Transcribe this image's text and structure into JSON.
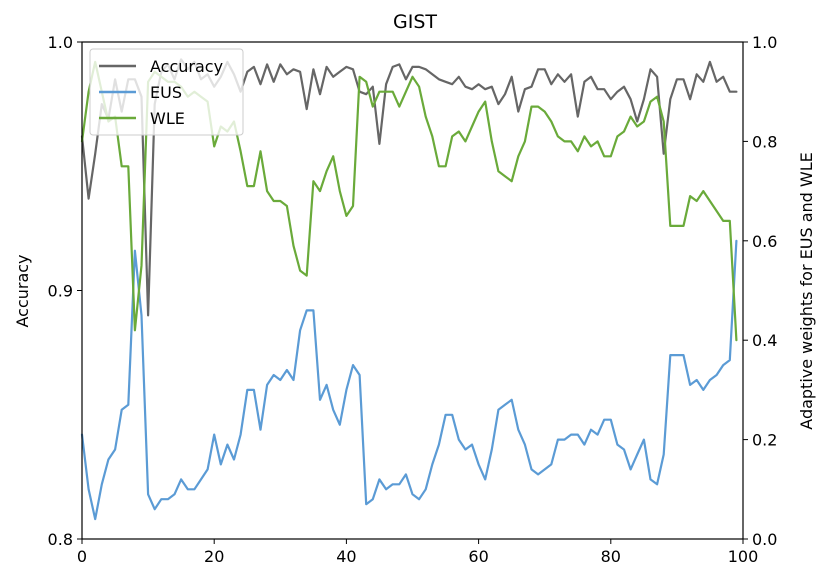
{
  "chart_data": {
    "type": "line",
    "title": "GIST",
    "xlabel": "",
    "ylabel": "Accuracy",
    "ylabel_right": "Adaptive weights for EUS and WLE",
    "xlim": [
      0,
      100
    ],
    "ylim": [
      0.8,
      1.0
    ],
    "ylim_right": [
      0.0,
      1.0
    ],
    "xticks": [
      "0",
      "20",
      "40",
      "60",
      "80",
      "100"
    ],
    "yticks_left": [
      "0.8",
      "0.9",
      "1.0"
    ],
    "yticks_right": [
      "0.0",
      "0.2",
      "0.4",
      "0.6",
      "0.8",
      "1.0"
    ],
    "legend_position": "top-left",
    "grid": false,
    "series": [
      {
        "name": "Accuracy",
        "axis": "left",
        "color": "#666666",
        "x": [
          0,
          1,
          2,
          3,
          4,
          5,
          6,
          7,
          8,
          9,
          10,
          11,
          12,
          13,
          14,
          15,
          16,
          17,
          18,
          19,
          20,
          21,
          22,
          23,
          24,
          25,
          26,
          27,
          28,
          29,
          30,
          31,
          32,
          33,
          34,
          35,
          36,
          37,
          38,
          39,
          40,
          41,
          42,
          43,
          44,
          45,
          46,
          47,
          48,
          49,
          50,
          51,
          52,
          53,
          54,
          55,
          56,
          57,
          58,
          59,
          60,
          61,
          62,
          63,
          64,
          65,
          66,
          67,
          68,
          69,
          70,
          71,
          72,
          73,
          74,
          75,
          76,
          77,
          78,
          79,
          80,
          81,
          82,
          83,
          84,
          85,
          86,
          87,
          88,
          89,
          90,
          91,
          92,
          93,
          94,
          95,
          96,
          97,
          98,
          99
        ],
        "values": [
          0.962,
          0.937,
          0.955,
          0.975,
          0.969,
          0.985,
          0.972,
          0.985,
          0.985,
          0.978,
          0.89,
          0.975,
          0.988,
          0.991,
          0.985,
          0.993,
          0.989,
          0.992,
          0.985,
          0.987,
          0.982,
          0.986,
          0.992,
          0.987,
          0.98,
          0.988,
          0.99,
          0.983,
          0.991,
          0.984,
          0.991,
          0.987,
          0.989,
          0.988,
          0.973,
          0.989,
          0.979,
          0.99,
          0.986,
          0.988,
          0.99,
          0.989,
          0.98,
          0.979,
          0.982,
          0.959,
          0.983,
          0.99,
          0.991,
          0.985,
          0.99,
          0.99,
          0.989,
          0.987,
          0.985,
          0.984,
          0.983,
          0.986,
          0.982,
          0.981,
          0.983,
          0.981,
          0.982,
          0.975,
          0.979,
          0.986,
          0.972,
          0.981,
          0.982,
          0.989,
          0.989,
          0.983,
          0.987,
          0.984,
          0.987,
          0.97,
          0.984,
          0.986,
          0.981,
          0.981,
          0.977,
          0.98,
          0.982,
          0.977,
          0.968,
          0.977,
          0.989,
          0.986,
          0.955,
          0.977,
          0.985,
          0.985,
          0.977,
          0.987,
          0.984,
          0.992,
          0.984,
          0.986,
          0.98,
          0.98
        ]
      },
      {
        "name": "EUS",
        "axis": "right",
        "color": "#5b9bd5",
        "x": [
          0,
          1,
          2,
          3,
          4,
          5,
          6,
          7,
          8,
          9,
          10,
          11,
          12,
          13,
          14,
          15,
          16,
          17,
          18,
          19,
          20,
          21,
          22,
          23,
          24,
          25,
          26,
          27,
          28,
          29,
          30,
          31,
          32,
          33,
          34,
          35,
          36,
          37,
          38,
          39,
          40,
          41,
          42,
          43,
          44,
          45,
          46,
          47,
          48,
          49,
          50,
          51,
          52,
          53,
          54,
          55,
          56,
          57,
          58,
          59,
          60,
          61,
          62,
          63,
          64,
          65,
          66,
          67,
          68,
          69,
          70,
          71,
          72,
          73,
          74,
          75,
          76,
          77,
          78,
          79,
          80,
          81,
          82,
          83,
          84,
          85,
          86,
          87,
          88,
          89,
          90,
          91,
          92,
          93,
          94,
          95,
          96,
          97,
          98,
          99
        ],
        "values": [
          0.21,
          0.1,
          0.04,
          0.11,
          0.16,
          0.18,
          0.26,
          0.27,
          0.58,
          0.45,
          0.09,
          0.06,
          0.08,
          0.08,
          0.09,
          0.12,
          0.1,
          0.1,
          0.12,
          0.14,
          0.21,
          0.15,
          0.19,
          0.16,
          0.21,
          0.3,
          0.3,
          0.22,
          0.31,
          0.33,
          0.32,
          0.34,
          0.32,
          0.42,
          0.46,
          0.46,
          0.28,
          0.31,
          0.26,
          0.23,
          0.3,
          0.35,
          0.33,
          0.07,
          0.08,
          0.12,
          0.1,
          0.11,
          0.11,
          0.13,
          0.09,
          0.08,
          0.1,
          0.15,
          0.19,
          0.25,
          0.25,
          0.2,
          0.18,
          0.19,
          0.15,
          0.12,
          0.18,
          0.26,
          0.27,
          0.28,
          0.22,
          0.19,
          0.14,
          0.13,
          0.14,
          0.15,
          0.2,
          0.2,
          0.21,
          0.21,
          0.19,
          0.22,
          0.21,
          0.24,
          0.24,
          0.19,
          0.18,
          0.14,
          0.17,
          0.2,
          0.12,
          0.11,
          0.17,
          0.37,
          0.37,
          0.37,
          0.31,
          0.32,
          0.3,
          0.32,
          0.33,
          0.35,
          0.36,
          0.6
        ]
      },
      {
        "name": "WLE",
        "axis": "right",
        "color": "#6aaa3a",
        "x": [
          0,
          1,
          2,
          3,
          4,
          5,
          6,
          7,
          8,
          9,
          10,
          11,
          12,
          13,
          14,
          15,
          16,
          17,
          18,
          19,
          20,
          21,
          22,
          23,
          24,
          25,
          26,
          27,
          28,
          29,
          30,
          31,
          32,
          33,
          34,
          35,
          36,
          37,
          38,
          39,
          40,
          41,
          42,
          43,
          44,
          45,
          46,
          47,
          48,
          49,
          50,
          51,
          52,
          53,
          54,
          55,
          56,
          57,
          58,
          59,
          60,
          61,
          62,
          63,
          64,
          65,
          66,
          67,
          68,
          69,
          70,
          71,
          72,
          73,
          74,
          75,
          76,
          77,
          78,
          79,
          80,
          81,
          82,
          83,
          84,
          85,
          86,
          87,
          88,
          89,
          90,
          91,
          92,
          93,
          94,
          95,
          96,
          97,
          98,
          99
        ],
        "values": [
          0.8,
          0.9,
          0.96,
          0.9,
          0.84,
          0.85,
          0.75,
          0.75,
          0.42,
          0.55,
          0.92,
          0.94,
          0.93,
          0.92,
          0.92,
          0.91,
          0.89,
          0.9,
          0.89,
          0.88,
          0.79,
          0.83,
          0.82,
          0.84,
          0.78,
          0.71,
          0.71,
          0.78,
          0.7,
          0.68,
          0.68,
          0.67,
          0.59,
          0.54,
          0.53,
          0.72,
          0.7,
          0.74,
          0.77,
          0.7,
          0.65,
          0.67,
          0.93,
          0.92,
          0.87,
          0.9,
          0.9,
          0.9,
          0.87,
          0.9,
          0.93,
          0.91,
          0.85,
          0.81,
          0.75,
          0.75,
          0.81,
          0.82,
          0.8,
          0.83,
          0.86,
          0.88,
          0.8,
          0.74,
          0.73,
          0.72,
          0.77,
          0.8,
          0.87,
          0.87,
          0.86,
          0.84,
          0.81,
          0.8,
          0.8,
          0.78,
          0.81,
          0.79,
          0.8,
          0.77,
          0.77,
          0.81,
          0.82,
          0.85,
          0.83,
          0.84,
          0.88,
          0.89,
          0.84,
          0.63,
          0.63,
          0.63,
          0.69,
          0.68,
          0.7,
          0.68,
          0.66,
          0.64,
          0.64,
          0.4
        ]
      }
    ]
  }
}
